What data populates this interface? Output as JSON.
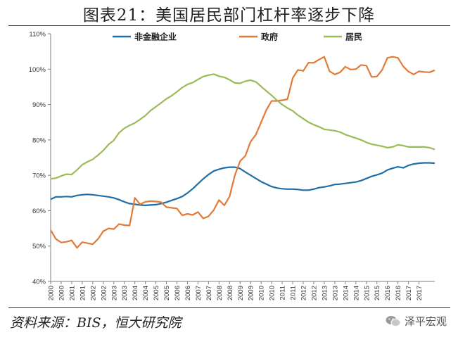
{
  "title": "图表21：美国居民部门杠杆率逐步下降",
  "source": "资料来源：BIS，恒大研究院",
  "watermark": "泽平宏观",
  "watermark_icon": "wechat-icon",
  "chart_data": {
    "type": "line",
    "legend_position": "top",
    "ylim": [
      40,
      110
    ],
    "yticks": [
      "40%",
      "50%",
      "60%",
      "70%",
      "80%",
      "90%",
      "100%",
      "110%"
    ],
    "xlim": [
      2000,
      2018.25
    ],
    "xticks": [
      "2000",
      "2000",
      "2001",
      "2001",
      "2002",
      "2002",
      "2003",
      "2003",
      "2004",
      "2004",
      "2005",
      "2005",
      "2006",
      "2006",
      "2007",
      "2007",
      "2008",
      "2008",
      "2009",
      "2009",
      "2010",
      "2010",
      "2011",
      "2011",
      "2012",
      "2012",
      "2013",
      "2013",
      "2014",
      "2014",
      "2015",
      "2015",
      "2016",
      "2016",
      "2017",
      "2017"
    ],
    "grid": false,
    "series": [
      {
        "name": "非金融企业",
        "color": "#1f6ea8",
        "points": [
          [
            2000.0,
            63.2
          ],
          [
            2000.25,
            63.9
          ],
          [
            2000.5,
            63.9
          ],
          [
            2000.75,
            64.0
          ],
          [
            2001.0,
            63.9
          ],
          [
            2001.25,
            64.3
          ],
          [
            2001.5,
            64.5
          ],
          [
            2001.75,
            64.6
          ],
          [
            2002.0,
            64.5
          ],
          [
            2002.25,
            64.3
          ],
          [
            2002.5,
            64.1
          ],
          [
            2002.75,
            63.9
          ],
          [
            2003.0,
            63.6
          ],
          [
            2003.25,
            63.1
          ],
          [
            2003.5,
            62.5
          ],
          [
            2003.75,
            62.0
          ],
          [
            2004.0,
            61.8
          ],
          [
            2004.25,
            61.6
          ],
          [
            2004.5,
            61.5
          ],
          [
            2004.75,
            61.6
          ],
          [
            2005.0,
            61.7
          ],
          [
            2005.25,
            62.0
          ],
          [
            2005.5,
            62.4
          ],
          [
            2005.75,
            62.9
          ],
          [
            2006.0,
            63.4
          ],
          [
            2006.25,
            64.0
          ],
          [
            2006.5,
            65.0
          ],
          [
            2006.75,
            66.2
          ],
          [
            2007.0,
            67.6
          ],
          [
            2007.25,
            69.0
          ],
          [
            2007.5,
            70.2
          ],
          [
            2007.75,
            71.2
          ],
          [
            2008.0,
            71.7
          ],
          [
            2008.25,
            72.1
          ],
          [
            2008.5,
            72.3
          ],
          [
            2008.75,
            72.3
          ],
          [
            2009.0,
            71.9
          ],
          [
            2009.25,
            70.9
          ],
          [
            2009.5,
            70.0
          ],
          [
            2009.75,
            69.1
          ],
          [
            2010.0,
            68.2
          ],
          [
            2010.25,
            67.5
          ],
          [
            2010.5,
            66.8
          ],
          [
            2010.75,
            66.4
          ],
          [
            2011.0,
            66.2
          ],
          [
            2011.25,
            66.1
          ],
          [
            2011.5,
            66.1
          ],
          [
            2011.75,
            66.0
          ],
          [
            2012.0,
            65.8
          ],
          [
            2012.25,
            65.8
          ],
          [
            2012.5,
            66.1
          ],
          [
            2012.75,
            66.5
          ],
          [
            2013.0,
            66.7
          ],
          [
            2013.25,
            67.0
          ],
          [
            2013.5,
            67.4
          ],
          [
            2013.75,
            67.5
          ],
          [
            2014.0,
            67.7
          ],
          [
            2014.25,
            67.9
          ],
          [
            2014.5,
            68.1
          ],
          [
            2014.75,
            68.5
          ],
          [
            2015.0,
            69.1
          ],
          [
            2015.25,
            69.7
          ],
          [
            2015.5,
            70.1
          ],
          [
            2015.75,
            70.6
          ],
          [
            2016.0,
            71.5
          ],
          [
            2016.25,
            72.0
          ],
          [
            2016.5,
            72.4
          ],
          [
            2016.75,
            72.1
          ],
          [
            2017.0,
            72.8
          ],
          [
            2017.25,
            73.2
          ],
          [
            2017.5,
            73.4
          ],
          [
            2017.75,
            73.5
          ],
          [
            2018.0,
            73.5
          ],
          [
            2018.25,
            73.4
          ]
        ]
      },
      {
        "name": "政府",
        "color": "#e07b39",
        "points": [
          [
            2000.0,
            54.5
          ],
          [
            2000.25,
            52.0
          ],
          [
            2000.5,
            51.0
          ],
          [
            2000.75,
            51.2
          ],
          [
            2001.0,
            51.6
          ],
          [
            2001.25,
            49.5
          ],
          [
            2001.5,
            51.1
          ],
          [
            2001.75,
            50.8
          ],
          [
            2002.0,
            50.5
          ],
          [
            2002.25,
            52.0
          ],
          [
            2002.5,
            54.2
          ],
          [
            2002.75,
            55.0
          ],
          [
            2003.0,
            54.8
          ],
          [
            2003.25,
            56.2
          ],
          [
            2003.5,
            55.9
          ],
          [
            2003.75,
            55.8
          ],
          [
            2004.0,
            63.6
          ],
          [
            2004.25,
            61.8
          ],
          [
            2004.5,
            62.5
          ],
          [
            2004.75,
            62.7
          ],
          [
            2005.0,
            62.6
          ],
          [
            2005.25,
            62.4
          ],
          [
            2005.5,
            61.0
          ],
          [
            2005.75,
            60.8
          ],
          [
            2006.0,
            60.6
          ],
          [
            2006.25,
            58.7
          ],
          [
            2006.5,
            59.1
          ],
          [
            2006.75,
            58.8
          ],
          [
            2007.0,
            59.6
          ],
          [
            2007.25,
            57.8
          ],
          [
            2007.5,
            58.4
          ],
          [
            2007.75,
            60.2
          ],
          [
            2008.0,
            63.0
          ],
          [
            2008.25,
            61.5
          ],
          [
            2008.5,
            64.0
          ],
          [
            2008.75,
            70.0
          ],
          [
            2009.0,
            74.0
          ],
          [
            2009.25,
            75.5
          ],
          [
            2009.5,
            79.5
          ],
          [
            2009.75,
            81.5
          ],
          [
            2010.0,
            85.0
          ],
          [
            2010.25,
            88.5
          ],
          [
            2010.5,
            91.0
          ],
          [
            2010.75,
            91.0
          ],
          [
            2011.0,
            91.2
          ],
          [
            2011.25,
            91.5
          ],
          [
            2011.5,
            97.5
          ],
          [
            2011.75,
            99.8
          ],
          [
            2012.0,
            99.5
          ],
          [
            2012.25,
            101.8
          ],
          [
            2012.5,
            101.8
          ],
          [
            2012.75,
            102.7
          ],
          [
            2013.0,
            103.5
          ],
          [
            2013.25,
            99.4
          ],
          [
            2013.5,
            98.5
          ],
          [
            2013.75,
            99.1
          ],
          [
            2014.0,
            100.7
          ],
          [
            2014.25,
            99.9
          ],
          [
            2014.5,
            100.0
          ],
          [
            2014.75,
            101.2
          ],
          [
            2015.0,
            101.0
          ],
          [
            2015.25,
            97.8
          ],
          [
            2015.5,
            97.9
          ],
          [
            2015.75,
            99.8
          ],
          [
            2016.0,
            103.2
          ],
          [
            2016.25,
            103.5
          ],
          [
            2016.5,
            103.2
          ],
          [
            2016.75,
            100.8
          ],
          [
            2017.0,
            99.3
          ],
          [
            2017.25,
            98.5
          ],
          [
            2017.5,
            99.4
          ],
          [
            2017.75,
            99.2
          ],
          [
            2018.0,
            99.1
          ],
          [
            2018.25,
            99.7
          ]
        ]
      },
      {
        "name": "居民",
        "color": "#9bbb59",
        "points": [
          [
            2000.0,
            69.0
          ],
          [
            2000.25,
            69.2
          ],
          [
            2000.5,
            69.8
          ],
          [
            2000.75,
            70.3
          ],
          [
            2001.0,
            70.2
          ],
          [
            2001.25,
            71.5
          ],
          [
            2001.5,
            73.0
          ],
          [
            2001.75,
            73.8
          ],
          [
            2002.0,
            74.5
          ],
          [
            2002.25,
            75.7
          ],
          [
            2002.5,
            77.0
          ],
          [
            2002.75,
            78.7
          ],
          [
            2003.0,
            79.9
          ],
          [
            2003.25,
            82.0
          ],
          [
            2003.5,
            83.3
          ],
          [
            2003.75,
            84.1
          ],
          [
            2004.0,
            84.8
          ],
          [
            2004.25,
            85.8
          ],
          [
            2004.5,
            86.9
          ],
          [
            2004.75,
            88.3
          ],
          [
            2005.0,
            89.4
          ],
          [
            2005.25,
            90.5
          ],
          [
            2005.5,
            91.6
          ],
          [
            2005.75,
            92.5
          ],
          [
            2006.0,
            93.6
          ],
          [
            2006.25,
            94.8
          ],
          [
            2006.5,
            95.7
          ],
          [
            2006.75,
            96.2
          ],
          [
            2007.0,
            97.1
          ],
          [
            2007.25,
            97.9
          ],
          [
            2007.5,
            98.3
          ],
          [
            2007.75,
            98.6
          ],
          [
            2008.0,
            98.0
          ],
          [
            2008.25,
            97.7
          ],
          [
            2008.5,
            97.0
          ],
          [
            2008.75,
            96.1
          ],
          [
            2009.0,
            96.0
          ],
          [
            2009.25,
            96.6
          ],
          [
            2009.5,
            96.9
          ],
          [
            2009.75,
            96.4
          ],
          [
            2010.0,
            95.1
          ],
          [
            2010.25,
            93.8
          ],
          [
            2010.5,
            92.6
          ],
          [
            2010.75,
            91.2
          ],
          [
            2011.0,
            90.0
          ],
          [
            2011.25,
            89.0
          ],
          [
            2011.5,
            88.2
          ],
          [
            2011.75,
            87.0
          ],
          [
            2012.0,
            86.0
          ],
          [
            2012.25,
            85.0
          ],
          [
            2012.5,
            84.3
          ],
          [
            2012.75,
            83.7
          ],
          [
            2013.0,
            83.0
          ],
          [
            2013.25,
            82.8
          ],
          [
            2013.5,
            82.6
          ],
          [
            2013.75,
            82.2
          ],
          [
            2014.0,
            81.5
          ],
          [
            2014.25,
            81.0
          ],
          [
            2014.5,
            80.5
          ],
          [
            2014.75,
            80.0
          ],
          [
            2015.0,
            79.3
          ],
          [
            2015.25,
            78.8
          ],
          [
            2015.5,
            78.5
          ],
          [
            2015.75,
            78.2
          ],
          [
            2016.0,
            77.8
          ],
          [
            2016.25,
            78.0
          ],
          [
            2016.5,
            78.6
          ],
          [
            2016.75,
            78.4
          ],
          [
            2017.0,
            78.0
          ],
          [
            2017.25,
            78.0
          ],
          [
            2017.5,
            78.0
          ],
          [
            2017.75,
            78.0
          ],
          [
            2018.0,
            77.8
          ],
          [
            2018.25,
            77.3
          ]
        ]
      }
    ]
  }
}
